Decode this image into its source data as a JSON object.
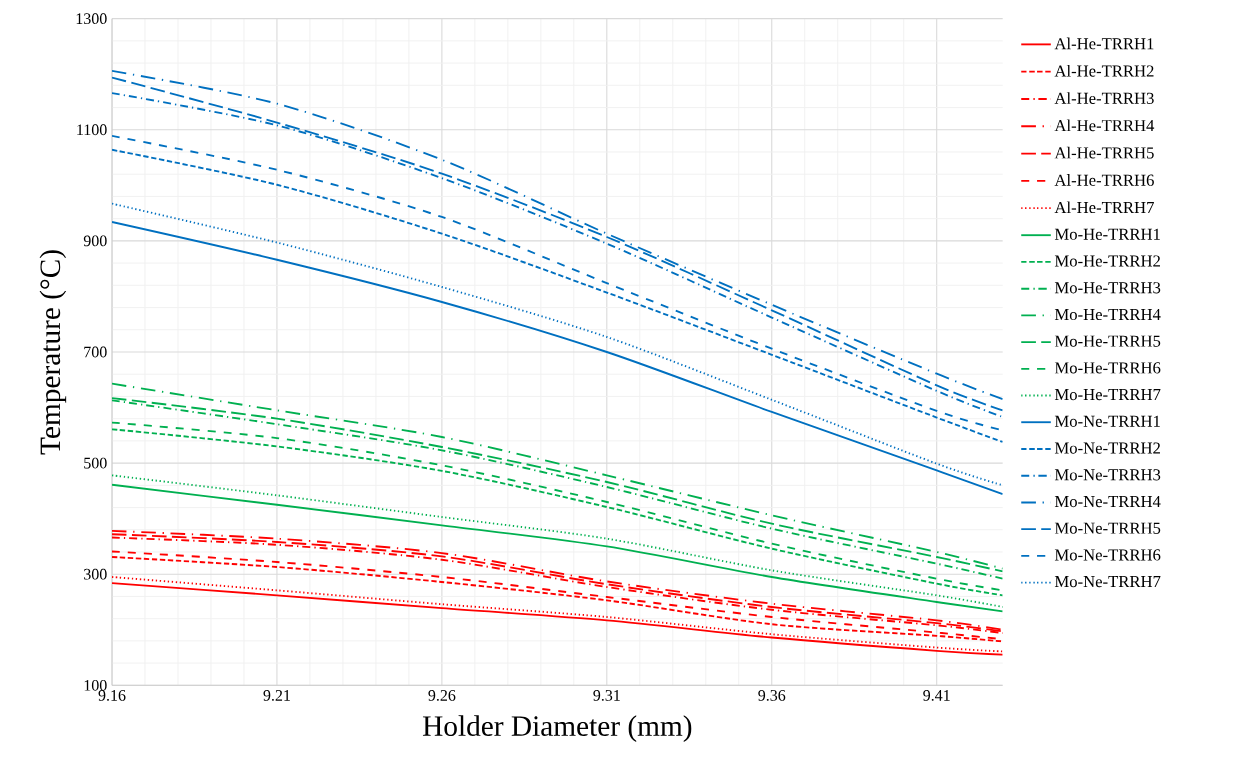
{
  "chart_data": {
    "type": "line",
    "xlabel": "Holder Diameter (mm)",
    "ylabel": "Temperature (°C)",
    "x": [
      9.16,
      9.21,
      9.26,
      9.31,
      9.36,
      9.41,
      9.43
    ],
    "xlim": [
      9.16,
      9.43
    ],
    "xticks": [
      9.16,
      9.21,
      9.26,
      9.31,
      9.36,
      9.41
    ],
    "ylim": [
      100,
      1300
    ],
    "yticks": [
      100,
      300,
      500,
      700,
      900,
      1100,
      1300
    ],
    "grid": true,
    "legend": "right",
    "series": [
      {
        "name": "Al-He-TRRH1",
        "color": "#ff0000",
        "line_style": "solid",
        "values": [
          284,
          262,
          239,
          217,
          186,
          162,
          155
        ]
      },
      {
        "name": "Al-He-TRRH2",
        "color": "#ff0000",
        "line_style": "dashed",
        "values": [
          331,
          313,
          286,
          253,
          210,
          189,
          179
        ]
      },
      {
        "name": "Al-He-TRRH3",
        "color": "#ff0000",
        "line_style": "dashdot",
        "values": [
          366,
          353,
          326,
          277,
          236,
          208,
          194
        ]
      },
      {
        "name": "Al-He-TRRH4",
        "color": "#ff0000",
        "line_style": "longdashdot",
        "values": [
          378,
          364,
          338,
          287,
          247,
          217,
          200
        ]
      },
      {
        "name": "Al-He-TRRH5",
        "color": "#ff0000",
        "line_style": "longdash",
        "values": [
          372,
          358,
          332,
          282,
          241,
          212,
          197
        ]
      },
      {
        "name": "Al-He-TRRH6",
        "color": "#ff0000",
        "line_style": "loosely dashed",
        "values": [
          341,
          322,
          295,
          259,
          223,
          195,
          183
        ]
      },
      {
        "name": "Al-He-TRRH7",
        "color": "#ff0000",
        "line_style": "dotted",
        "values": [
          295,
          271,
          246,
          223,
          192,
          168,
          161
        ]
      },
      {
        "name": "Mo-He-TRRH1",
        "color": "#00b050",
        "line_style": "solid",
        "values": [
          461,
          425,
          388,
          350,
          295,
          250,
          233
        ]
      },
      {
        "name": "Mo-He-TRRH2",
        "color": "#00b050",
        "line_style": "dashed",
        "values": [
          561,
          530,
          486,
          421,
          346,
          283,
          262
        ]
      },
      {
        "name": "Mo-He-TRRH3",
        "color": "#00b050",
        "line_style": "dashdot",
        "values": [
          613,
          570,
          523,
          457,
          382,
          319,
          292
        ]
      },
      {
        "name": "Mo-He-TRRH4",
        "color": "#00b050",
        "line_style": "longdashdot",
        "values": [
          643,
          595,
          547,
          478,
          406,
          340,
          310
        ]
      },
      {
        "name": "Mo-He-TRRH5",
        "color": "#00b050",
        "line_style": "longdash",
        "values": [
          617,
          580,
          529,
          466,
          391,
          331,
          305
        ]
      },
      {
        "name": "Mo-He-TRRH6",
        "color": "#00b050",
        "line_style": "loosely dashed",
        "values": [
          573,
          545,
          496,
          430,
          355,
          292,
          271
        ]
      },
      {
        "name": "Mo-He-TRRH7",
        "color": "#00b050",
        "line_style": "dotted",
        "values": [
          478,
          442,
          403,
          364,
          307,
          262,
          241
        ]
      },
      {
        "name": "Mo-Ne-TRRH1",
        "color": "#0070c0",
        "line_style": "solid",
        "values": [
          934,
          866,
          790,
          700,
          592,
          487,
          444
        ]
      },
      {
        "name": "Mo-Ne-TRRH2",
        "color": "#0070c0",
        "line_style": "dashed",
        "values": [
          1064,
          1001,
          913,
          807,
          695,
          582,
          538
        ]
      },
      {
        "name": "Mo-Ne-TRRH3",
        "color": "#0070c0",
        "line_style": "dashdot",
        "values": [
          1166,
          1108,
          1013,
          895,
          762,
          630,
          583
        ]
      },
      {
        "name": "Mo-Ne-TRRH4",
        "color": "#0070c0",
        "line_style": "longdashdot",
        "values": [
          1206,
          1147,
          1046,
          913,
          785,
          661,
          615
        ]
      },
      {
        "name": "Mo-Ne-TRRH5",
        "color": "#0070c0",
        "line_style": "longdash",
        "values": [
          1194,
          1113,
          1021,
          907,
          775,
          640,
          595
        ]
      },
      {
        "name": "Mo-Ne-TRRH6",
        "color": "#0070c0",
        "line_style": "loosely dashed",
        "values": [
          1089,
          1028,
          943,
          824,
          706,
          594,
          559
        ]
      },
      {
        "name": "Mo-Ne-TRRH7",
        "color": "#0070c0",
        "line_style": "dotted",
        "values": [
          967,
          897,
          817,
          727,
          614,
          499,
          460
        ]
      }
    ]
  }
}
